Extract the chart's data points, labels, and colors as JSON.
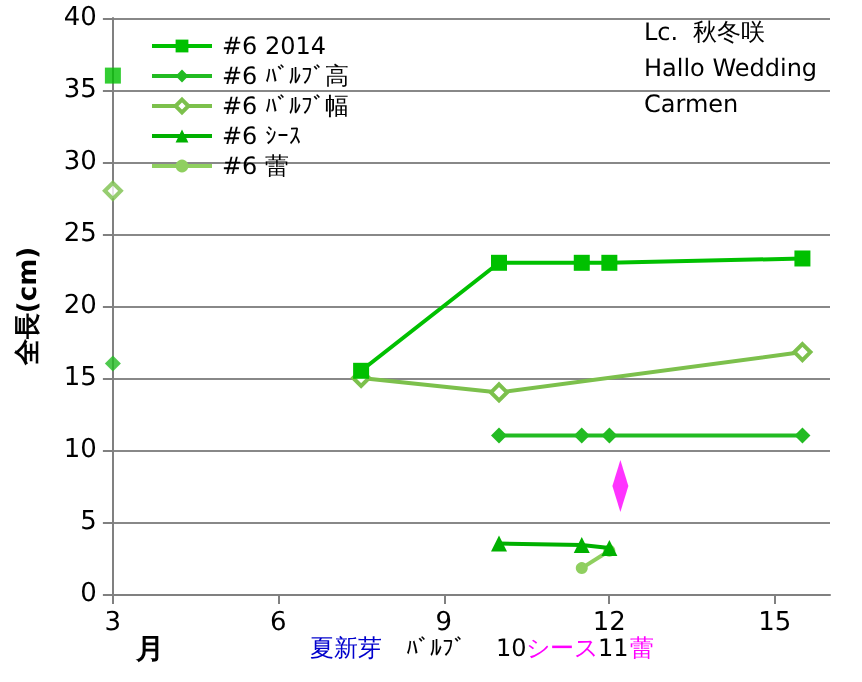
{
  "chart_data": {
    "type": "line",
    "ylabel": "全長(cm)",
    "xlabel": "月",
    "xlim": [
      3,
      16
    ],
    "xticks": [
      3,
      6,
      9,
      12,
      15
    ],
    "ylim": [
      0,
      40
    ],
    "yticks": [
      0,
      5,
      10,
      15,
      20,
      25,
      30,
      35,
      40
    ],
    "grid": "y",
    "legend": "top left",
    "annotations": [
      "Lc.  秋冬咲",
      "Hallo Wedding",
      "Carmen",
      "夏新芽",
      "ﾊﾞﾙﾌﾞ",
      "10",
      "シース",
      "11",
      "蕾"
    ],
    "series": [
      {
        "name": "#6 2014",
        "color": "#00c000",
        "marker": "square",
        "x": [
          7.5,
          10,
          11.5,
          12,
          15.5
        ],
        "values": [
          15.5,
          23,
          23,
          23,
          23.3
        ]
      },
      {
        "name": "#6 ﾊﾞﾙﾌﾞ高",
        "color": "#22bb22",
        "marker": "diamond",
        "x": [
          10,
          11.5,
          12,
          15.5
        ],
        "values": [
          11,
          11,
          11,
          11
        ]
      },
      {
        "name": "#6 ﾊﾞﾙﾌﾞ幅",
        "color": "#7cc04c",
        "marker": "diamond-open",
        "x": [
          7.5,
          10,
          15.5
        ],
        "values": [
          15,
          14,
          16.8
        ]
      },
      {
        "type": "scatter",
        "color": "#00c000",
        "marker": "square",
        "x": [
          3
        ],
        "values": [
          36
        ]
      },
      {
        "type": "scatter",
        "color": "#22bb22",
        "marker": "diamond",
        "x": [
          3
        ],
        "values": [
          16
        ]
      },
      {
        "type": "scatter",
        "color": "#7cc04c",
        "marker": "diamond-open",
        "x": [
          3
        ],
        "values": [
          28
        ]
      },
      {
        "name": "#6 ｼｰｽ",
        "color": "#00b000",
        "marker": "triangle",
        "x": [
          10,
          11.5,
          12
        ],
        "values": [
          3.5,
          3.4,
          3.2
        ]
      },
      {
        "name": "#6 蕾",
        "color": "#8fcf5f",
        "marker": "circle",
        "x": [
          11.5,
          12
        ],
        "values": [
          1.8,
          3
        ]
      },
      {
        "type": "scatter",
        "color": "#ff00ff",
        "marker": "diamond",
        "x": [
          12.2
        ],
        "values": [
          7.5
        ]
      }
    ]
  }
}
